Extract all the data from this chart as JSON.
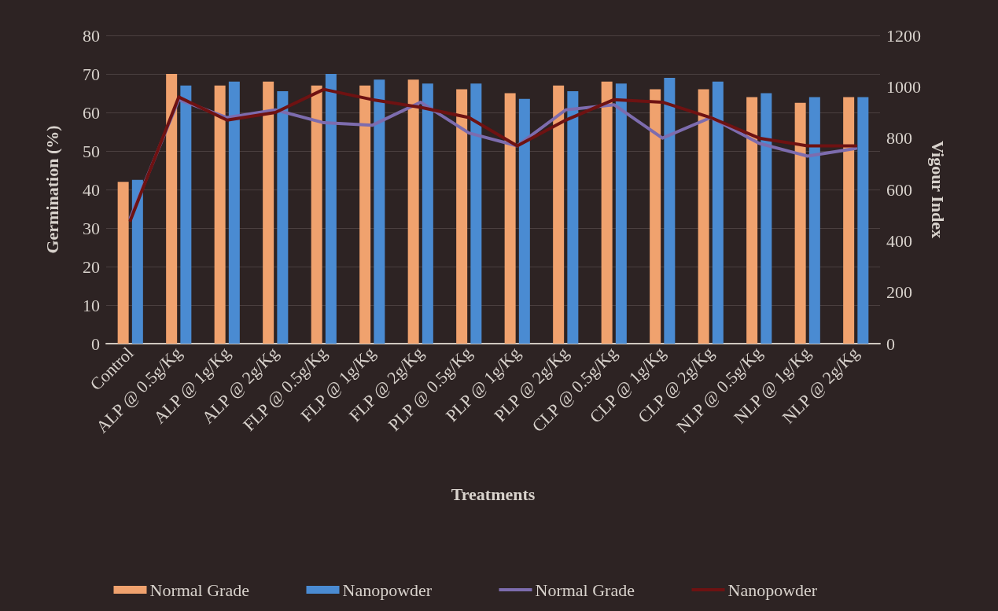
{
  "chart_data": {
    "type": "bar",
    "xlabel": "Treatments",
    "ylabel": "Germination (%)",
    "y2label": "Vigour Index",
    "categories": [
      "Control",
      "ALP @ 0.5g/Kg",
      "ALP @ 1g/Kg",
      "ALP @ 2g/Kg",
      "FLP @ 0.5g/Kg",
      "FLP @ 1g/Kg",
      "FLP @ 2g/Kg",
      "PLP @ 0.5g/Kg",
      "PLP @ 1g/Kg",
      "PLP @ 2g/Kg",
      "CLP @ 0.5g/Kg",
      "CLP @ 1g/Kg",
      "CLP @ 2g/Kg",
      "NLP @ 0.5g/Kg",
      "NLP @ 1g/Kg",
      "NLP @ 2g/Kg"
    ],
    "series": [
      {
        "name": "Normal Grade",
        "color": "#f0a26e",
        "values": [
          42,
          70,
          67,
          68,
          67,
          67,
          68.5,
          66,
          65,
          67,
          68,
          66,
          66,
          64,
          62.5,
          64
        ]
      },
      {
        "name": "Nanopowder",
        "color": "#4a8bd2",
        "values": [
          42.5,
          67,
          68,
          65.5,
          70,
          68.5,
          67.5,
          67.5,
          63.5,
          65.5,
          67.5,
          69,
          68,
          65,
          64,
          64
        ]
      },
      {
        "name": "Normal Grade",
        "type": "line",
        "axis": "y2",
        "color": "#7d6cae",
        "values": [
          490,
          950,
          880,
          910,
          860,
          850,
          940,
          820,
          770,
          910,
          930,
          800,
          880,
          780,
          730,
          760
        ]
      },
      {
        "name": "Nanopowder",
        "type": "line",
        "axis": "y2",
        "color": "#6e1212",
        "values": [
          480,
          960,
          870,
          900,
          990,
          950,
          920,
          880,
          770,
          870,
          950,
          940,
          880,
          800,
          770,
          770
        ]
      }
    ],
    "ylim": [
      0,
      80
    ],
    "yticks": [
      0,
      10,
      20,
      30,
      40,
      50,
      60,
      70,
      80
    ],
    "y2lim": [
      0,
      1200
    ],
    "y2ticks": [
      0,
      200,
      400,
      600,
      800,
      1000,
      1200
    ],
    "grid": "y",
    "legend": "bottom",
    "marker": "none",
    "line_style": "solid"
  }
}
